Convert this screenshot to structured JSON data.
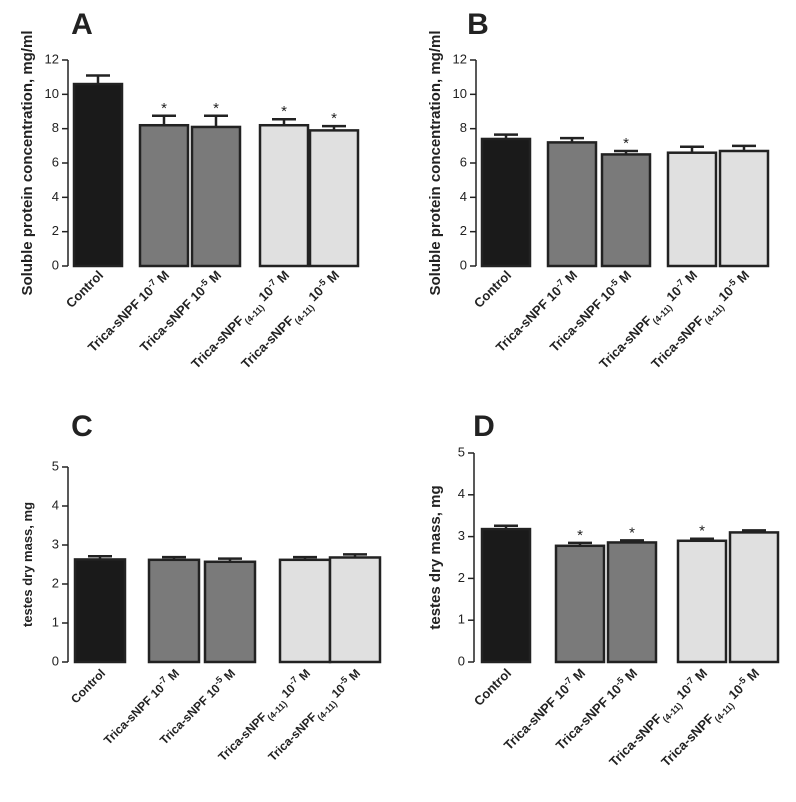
{
  "chart_data": [
    {
      "panel": "A",
      "type": "bar",
      "ylabel": "Soluble protein concentration, mg/ml",
      "ylim": [
        0,
        12
      ],
      "yticks": [
        0,
        2,
        4,
        6,
        8,
        10,
        12
      ],
      "categories": [
        "Control",
        "Trica-sNPF 10-7 M",
        "Trica-sNPF 10-5 M",
        "Trica-sNPF(4-11) 10-7 M",
        "Trica-sNPF(4-11) 10-5 M"
      ],
      "values": [
        10.6,
        8.2,
        8.1,
        8.2,
        7.9
      ],
      "errors": [
        0.5,
        0.55,
        0.65,
        0.35,
        0.25
      ],
      "significance": [
        "",
        "*",
        "*",
        "*",
        "*"
      ],
      "fills": [
        "#1a1a1a",
        "#7a7a7a",
        "#7a7a7a",
        "#e0e0e0",
        "#e0e0e0"
      ]
    },
    {
      "panel": "B",
      "type": "bar",
      "ylabel": "Soluble protein concentration, mg/ml",
      "ylim": [
        0,
        12
      ],
      "yticks": [
        0,
        2,
        4,
        6,
        8,
        10,
        12
      ],
      "categories": [
        "Control",
        "Trica-sNPF 10-7 M",
        "Trica-sNPF 10-5 M",
        "Trica-sNPF(4-11) 10-7 M",
        "Trica-sNPF(4-11) 10-5 M"
      ],
      "values": [
        7.4,
        7.2,
        6.5,
        6.6,
        6.7
      ],
      "errors": [
        0.25,
        0.25,
        0.2,
        0.35,
        0.3
      ],
      "significance": [
        "",
        "",
        "*",
        "",
        ""
      ],
      "fills": [
        "#1a1a1a",
        "#7a7a7a",
        "#7a7a7a",
        "#e0e0e0",
        "#e0e0e0"
      ]
    },
    {
      "panel": "C",
      "type": "bar",
      "ylabel": "testes dry mass, mg",
      "ylim": [
        0,
        5
      ],
      "yticks": [
        0,
        1,
        2,
        3,
        4,
        5
      ],
      "categories": [
        "Control",
        "Trica-sNPF 10-7 M",
        "Trica-sNPF 10-5 M",
        "Trica-sNPF(4-11) 10-7 M",
        "Trica-sNPF(4-11) 10-5 M"
      ],
      "values": [
        2.63,
        2.62,
        2.57,
        2.62,
        2.68
      ],
      "errors": [
        0.08,
        0.07,
        0.08,
        0.07,
        0.08
      ],
      "significance": [
        "",
        "",
        "",
        "",
        ""
      ],
      "fills": [
        "#1a1a1a",
        "#7a7a7a",
        "#7a7a7a",
        "#e0e0e0",
        "#e0e0e0"
      ]
    },
    {
      "panel": "D",
      "type": "bar",
      "ylabel": "testes dry mass, mg",
      "ylim": [
        0,
        5
      ],
      "yticks": [
        0,
        1,
        2,
        3,
        4,
        5
      ],
      "categories": [
        "Control",
        "Trica-sNPF 10-7 M",
        "Trica-sNPF 10-5 M",
        "Trica-sNPF(4-11) 10-7 M",
        "Trica-sNPF(4-11) 10-5 M"
      ],
      "values": [
        3.18,
        2.78,
        2.86,
        2.9,
        3.1
      ],
      "errors": [
        0.08,
        0.07,
        0.05,
        0.05,
        0.05
      ],
      "significance": [
        "",
        "*",
        "*",
        "*",
        ""
      ],
      "fills": [
        "#1a1a1a",
        "#7a7a7a",
        "#7a7a7a",
        "#e0e0e0",
        "#e0e0e0"
      ]
    }
  ],
  "category_parts": [
    {
      "base": "Control",
      "sub": "",
      "mid": "",
      "sup": "",
      "end": ""
    },
    {
      "base": "Trica-sNPF 10",
      "sub": "",
      "mid": "",
      "sup": "-7",
      "end": " M"
    },
    {
      "base": "Trica-sNPF 10",
      "sub": "",
      "mid": "",
      "sup": "-5",
      "end": " M"
    },
    {
      "base": "Trica-sNPF",
      "sub": "(4-11)",
      "mid": " 10",
      "sup": "-7",
      "end": " M"
    },
    {
      "base": "Trica-sNPF",
      "sub": "(4-11)",
      "mid": " 10",
      "sup": "-5",
      "end": " M"
    }
  ]
}
